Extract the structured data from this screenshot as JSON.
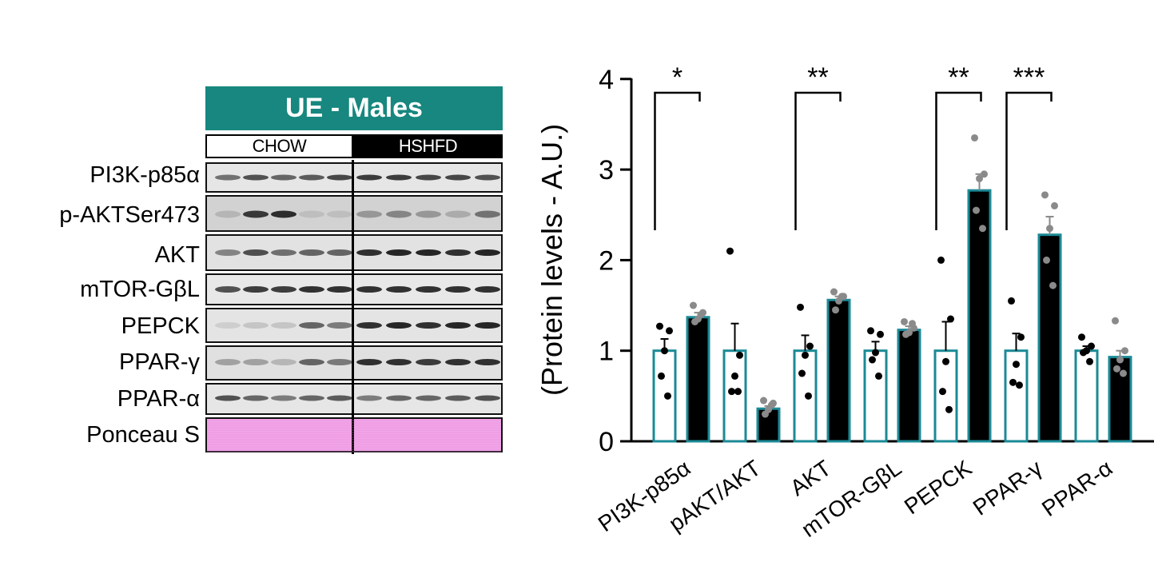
{
  "blot": {
    "title": "UE - Males",
    "groups": [
      "CHOW",
      "HSHFD"
    ],
    "proteins": [
      "PI3K-p85α",
      "p-AKTSer473",
      "AKT",
      "mTOR-GβL",
      "PEPCK",
      "PPAR-γ",
      "PPAR-α",
      "Ponceau S"
    ],
    "colors": {
      "header": "#17877f",
      "ponceau": "#f2a6e8"
    }
  },
  "chart_data": {
    "type": "bar",
    "ylabel": "(Protein levels - A.U.)",
    "ylim": [
      0,
      4
    ],
    "yticks": [
      "0",
      "1",
      "2",
      "3",
      "4"
    ],
    "categories": [
      "PI3K-p85α",
      "pAKT/AKT",
      "AKT",
      "mTOR-GβL",
      "PEPCK",
      "PPAR-γ",
      "PPAR-α"
    ],
    "series": [
      {
        "name": "CHOW",
        "color": "#ffffff",
        "edge": "#1b8a96",
        "values": [
          1.0,
          1.0,
          1.0,
          1.0,
          1.0,
          1.0,
          1.0
        ],
        "sem": [
          0.13,
          0.3,
          0.17,
          0.1,
          0.32,
          0.19,
          0.05
        ],
        "points": [
          [
            1.27,
            1.22,
            1.0,
            0.72,
            0.5
          ],
          [
            2.1,
            0.95,
            0.72,
            0.55,
            0.55
          ],
          [
            1.48,
            1.05,
            0.95,
            0.75,
            0.5
          ],
          [
            1.22,
            1.18,
            0.98,
            0.9,
            0.72
          ],
          [
            2.0,
            1.35,
            0.88,
            0.55,
            0.35
          ],
          [
            1.55,
            1.15,
            0.85,
            0.65,
            0.62
          ],
          [
            1.15,
            1.05,
            1.0,
            0.98,
            0.88
          ]
        ],
        "point_color": "#000000"
      },
      {
        "name": "HSHFD",
        "color": "#000000",
        "edge": "#1b8a96",
        "values": [
          1.37,
          0.36,
          1.56,
          1.23,
          2.77,
          2.28,
          0.93
        ],
        "sem": [
          0.05,
          0.03,
          0.04,
          0.04,
          0.18,
          0.2,
          0.07
        ],
        "points": [
          [
            1.5,
            1.42,
            1.35,
            1.32,
            1.4
          ],
          [
            0.45,
            0.42,
            0.35,
            0.3,
            0.4
          ],
          [
            1.65,
            1.6,
            1.55,
            1.45,
            1.6
          ],
          [
            1.32,
            1.25,
            1.2,
            1.18,
            1.3
          ],
          [
            3.35,
            2.95,
            2.9,
            2.55,
            2.35
          ],
          [
            2.72,
            2.6,
            2.35,
            2.0,
            1.72
          ],
          [
            1.33,
            1.0,
            0.9,
            0.8,
            0.75
          ]
        ],
        "point_color": "#8a8a8a"
      }
    ],
    "significance": [
      {
        "category": 0,
        "label": "*"
      },
      {
        "category": 2,
        "label": "**"
      },
      {
        "category": 4,
        "label": "**"
      },
      {
        "category": 5,
        "label": "***"
      }
    ]
  }
}
